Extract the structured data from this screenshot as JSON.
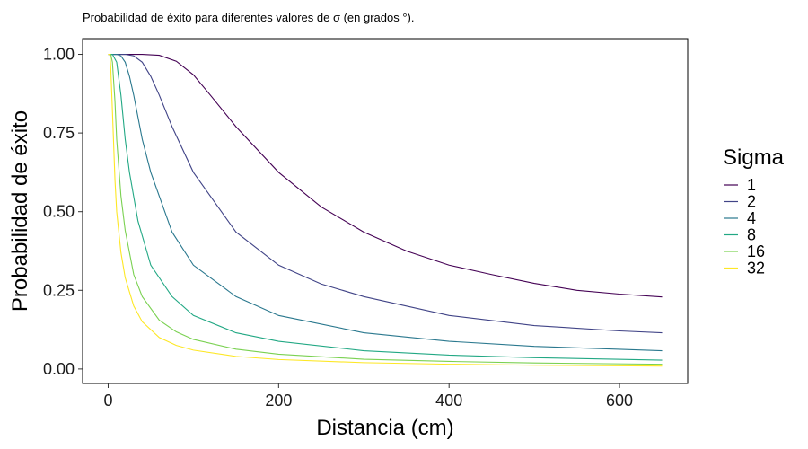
{
  "chart_data": {
    "type": "line",
    "title": "Probabilidad de éxito para diferentes valores de σ (en grados  °).",
    "xlabel": "Distancia (cm)",
    "ylabel": "Probabilidad de éxito",
    "xlim": [
      -30,
      680
    ],
    "ylim": [
      -0.046,
      1.05
    ],
    "x_ticks": [
      0,
      200,
      400,
      600
    ],
    "x_tick_labels": [
      "0",
      "200",
      "400",
      "600"
    ],
    "y_ticks": [
      0,
      0.25,
      0.5,
      0.75,
      1
    ],
    "y_tick_labels": [
      "0.00",
      "0.25",
      "0.50",
      "0.75",
      "1.00"
    ],
    "grid": false,
    "legend": {
      "title": "Sigma",
      "position": "right"
    },
    "series": [
      {
        "name": "1",
        "color": "#440154",
        "x": [
          0,
          40,
          60,
          80,
          100,
          120,
          150,
          200,
          250,
          300,
          350,
          400,
          450,
          500,
          550,
          600,
          650
        ],
        "values": [
          1.0,
          1.0,
          0.997,
          0.978,
          0.935,
          0.87,
          0.77,
          0.625,
          0.515,
          0.435,
          0.375,
          0.33,
          0.3,
          0.272,
          0.25,
          0.238,
          0.229
        ]
      },
      {
        "name": "2",
        "color": "#414487",
        "x": [
          0,
          20,
          30,
          40,
          50,
          60,
          75,
          100,
          150,
          200,
          250,
          300,
          400,
          500,
          600,
          650
        ],
        "values": [
          1.0,
          1.0,
          0.995,
          0.975,
          0.93,
          0.87,
          0.77,
          0.625,
          0.435,
          0.33,
          0.27,
          0.23,
          0.17,
          0.138,
          0.121,
          0.115
        ]
      },
      {
        "name": "4",
        "color": "#2A788E",
        "x": [
          0,
          10,
          15,
          20,
          25,
          30,
          40,
          50,
          75,
          100,
          150,
          200,
          300,
          400,
          500,
          650
        ],
        "values": [
          1.0,
          1.0,
          0.995,
          0.975,
          0.93,
          0.87,
          0.73,
          0.625,
          0.435,
          0.33,
          0.23,
          0.17,
          0.115,
          0.088,
          0.072,
          0.058
        ]
      },
      {
        "name": "8",
        "color": "#22A884",
        "x": [
          0,
          5,
          10,
          15,
          20,
          25,
          35,
          50,
          75,
          100,
          150,
          200,
          300,
          400,
          500,
          650
        ],
        "values": [
          1.0,
          1.0,
          0.975,
          0.87,
          0.73,
          0.625,
          0.47,
          0.33,
          0.23,
          0.17,
          0.115,
          0.088,
          0.058,
          0.044,
          0.036,
          0.028
        ]
      },
      {
        "name": "16",
        "color": "#7AD151",
        "x": [
          0,
          3,
          5,
          8,
          10,
          15,
          20,
          30,
          40,
          60,
          80,
          100,
          150,
          200,
          300,
          400,
          500,
          650
        ],
        "values": [
          1.0,
          1.0,
          0.975,
          0.85,
          0.73,
          0.55,
          0.44,
          0.3,
          0.23,
          0.155,
          0.118,
          0.094,
          0.063,
          0.047,
          0.031,
          0.024,
          0.019,
          0.015
        ]
      },
      {
        "name": "32",
        "color": "#FDE725",
        "x": [
          0,
          2,
          3,
          5,
          8,
          10,
          15,
          20,
          30,
          40,
          60,
          80,
          100,
          150,
          200,
          300,
          400,
          500,
          650
        ],
        "values": [
          1.0,
          1.0,
          0.96,
          0.82,
          0.6,
          0.5,
          0.37,
          0.29,
          0.2,
          0.15,
          0.1,
          0.075,
          0.06,
          0.04,
          0.03,
          0.02,
          0.015,
          0.012,
          0.009
        ]
      }
    ]
  }
}
